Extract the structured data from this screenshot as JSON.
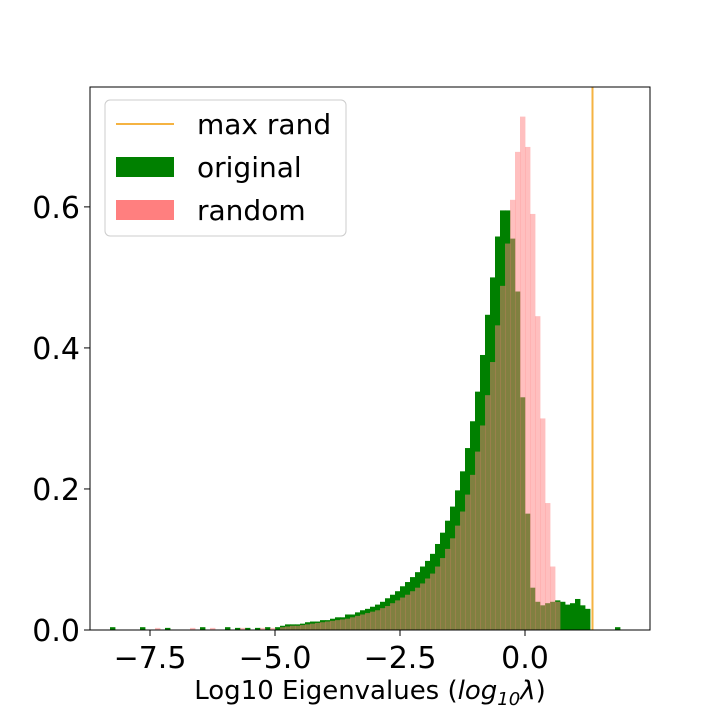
{
  "chart_data": {
    "type": "histogram",
    "xlabel": "Log10 Eigenvalues (log₁₀λ)",
    "xlabel_plain": "Log10 Eigenvalues (",
    "xlabel_math_base": "log",
    "xlabel_math_sub": "10",
    "xlabel_math_var": "λ",
    "xlabel_close": ")",
    "xlim": [
      -8.7,
      2.5
    ],
    "ylim": [
      0,
      0.77
    ],
    "xticks": [
      -7.5,
      -5.0,
      -2.5,
      0.0
    ],
    "xtick_labels": [
      "−7.5",
      "−5.0",
      "−2.5",
      "0.0"
    ],
    "yticks": [
      0.0,
      0.2,
      0.4,
      0.6
    ],
    "ytick_labels": [
      "0.0",
      "0.2",
      "0.4",
      "0.6"
    ],
    "bin_width": 0.1,
    "legend": {
      "position": "upper-left",
      "entries": [
        {
          "label": "max rand",
          "kind": "line",
          "color": "#f5b342"
        },
        {
          "label": "original",
          "kind": "patch",
          "color": "#008000"
        },
        {
          "label": "random",
          "kind": "patch",
          "color": "#ff7f7f"
        }
      ]
    },
    "vline": {
      "name": "max rand",
      "x": 1.35,
      "color": "#f5b342"
    },
    "series": [
      {
        "name": "original",
        "color": "#008000",
        "opacity": 1.0,
        "bins": [
          [
            -8.3,
            0.004
          ],
          [
            -7.7,
            0.004
          ],
          [
            -7.2,
            0.003
          ],
          [
            -6.5,
            0.004
          ],
          [
            -6.0,
            0.004
          ],
          [
            -5.8,
            0.003
          ],
          [
            -5.6,
            0.003
          ],
          [
            -5.4,
            0.003
          ],
          [
            -5.2,
            0.004
          ],
          [
            -5.0,
            0.004
          ],
          [
            -4.9,
            0.006
          ],
          [
            -4.8,
            0.008
          ],
          [
            -4.7,
            0.008
          ],
          [
            -4.6,
            0.008
          ],
          [
            -4.5,
            0.009
          ],
          [
            -4.4,
            0.011
          ],
          [
            -4.3,
            0.012
          ],
          [
            -4.2,
            0.012
          ],
          [
            -4.1,
            0.014
          ],
          [
            -4.0,
            0.014
          ],
          [
            -3.9,
            0.016
          ],
          [
            -3.8,
            0.018
          ],
          [
            -3.7,
            0.018
          ],
          [
            -3.6,
            0.022
          ],
          [
            -3.5,
            0.022
          ],
          [
            -3.4,
            0.025
          ],
          [
            -3.3,
            0.028
          ],
          [
            -3.2,
            0.03
          ],
          [
            -3.1,
            0.033
          ],
          [
            -3.0,
            0.036
          ],
          [
            -2.9,
            0.04
          ],
          [
            -2.8,
            0.045
          ],
          [
            -2.7,
            0.05
          ],
          [
            -2.6,
            0.055
          ],
          [
            -2.5,
            0.062
          ],
          [
            -2.4,
            0.068
          ],
          [
            -2.3,
            0.075
          ],
          [
            -2.2,
            0.082
          ],
          [
            -2.1,
            0.09
          ],
          [
            -2.0,
            0.098
          ],
          [
            -1.9,
            0.108
          ],
          [
            -1.8,
            0.122
          ],
          [
            -1.7,
            0.138
          ],
          [
            -1.6,
            0.155
          ],
          [
            -1.5,
            0.175
          ],
          [
            -1.4,
            0.198
          ],
          [
            -1.3,
            0.225
          ],
          [
            -1.2,
            0.258
          ],
          [
            -1.1,
            0.296
          ],
          [
            -1.0,
            0.338
          ],
          [
            -0.9,
            0.39
          ],
          [
            -0.8,
            0.447
          ],
          [
            -0.7,
            0.5
          ],
          [
            -0.6,
            0.558
          ],
          [
            -0.5,
            0.595
          ],
          [
            -0.4,
            0.595
          ],
          [
            -0.3,
            0.555
          ],
          [
            -0.2,
            0.48
          ],
          [
            -0.1,
            0.33
          ],
          [
            0.0,
            0.165
          ],
          [
            0.1,
            0.06
          ],
          [
            0.2,
            0.04
          ],
          [
            0.3,
            0.035
          ],
          [
            0.4,
            0.038
          ],
          [
            0.5,
            0.04
          ],
          [
            0.6,
            0.042
          ],
          [
            0.7,
            0.04
          ],
          [
            0.8,
            0.036
          ],
          [
            0.9,
            0.038
          ],
          [
            1.0,
            0.044
          ],
          [
            1.1,
            0.035
          ],
          [
            1.2,
            0.03
          ],
          [
            1.8,
            0.004
          ]
        ]
      },
      {
        "name": "random",
        "color": "#ff7f7f",
        "opacity": 0.5,
        "bins": [
          [
            -7.4,
            0.003
          ],
          [
            -6.7,
            0.003
          ],
          [
            -6.3,
            0.003
          ],
          [
            -5.7,
            0.003
          ],
          [
            -5.3,
            0.003
          ],
          [
            -5.1,
            0.003
          ],
          [
            -4.9,
            0.004
          ],
          [
            -4.8,
            0.005
          ],
          [
            -4.7,
            0.006
          ],
          [
            -4.6,
            0.006
          ],
          [
            -4.5,
            0.007
          ],
          [
            -4.4,
            0.008
          ],
          [
            -4.3,
            0.009
          ],
          [
            -4.2,
            0.01
          ],
          [
            -4.1,
            0.011
          ],
          [
            -4.0,
            0.012
          ],
          [
            -3.9,
            0.013
          ],
          [
            -3.8,
            0.014
          ],
          [
            -3.7,
            0.015
          ],
          [
            -3.6,
            0.016
          ],
          [
            -3.5,
            0.018
          ],
          [
            -3.4,
            0.02
          ],
          [
            -3.3,
            0.022
          ],
          [
            -3.2,
            0.024
          ],
          [
            -3.1,
            0.026
          ],
          [
            -3.0,
            0.028
          ],
          [
            -2.9,
            0.031
          ],
          [
            -2.8,
            0.034
          ],
          [
            -2.7,
            0.038
          ],
          [
            -2.6,
            0.042
          ],
          [
            -2.5,
            0.046
          ],
          [
            -2.4,
            0.05
          ],
          [
            -2.3,
            0.055
          ],
          [
            -2.2,
            0.06
          ],
          [
            -2.1,
            0.066
          ],
          [
            -2.0,
            0.073
          ],
          [
            -1.9,
            0.08
          ],
          [
            -1.8,
            0.09
          ],
          [
            -1.7,
            0.102
          ],
          [
            -1.6,
            0.115
          ],
          [
            -1.5,
            0.13
          ],
          [
            -1.4,
            0.148
          ],
          [
            -1.3,
            0.168
          ],
          [
            -1.2,
            0.192
          ],
          [
            -1.1,
            0.22
          ],
          [
            -1.0,
            0.253
          ],
          [
            -0.9,
            0.29
          ],
          [
            -0.8,
            0.333
          ],
          [
            -0.7,
            0.38
          ],
          [
            -0.6,
            0.432
          ],
          [
            -0.5,
            0.488
          ],
          [
            -0.4,
            0.548
          ],
          [
            -0.3,
            0.61
          ],
          [
            -0.2,
            0.678
          ],
          [
            -0.1,
            0.728
          ],
          [
            0.0,
            0.685
          ],
          [
            0.1,
            0.59
          ],
          [
            0.2,
            0.445
          ],
          [
            0.3,
            0.3
          ],
          [
            0.4,
            0.18
          ],
          [
            0.5,
            0.09
          ],
          [
            0.6,
            0.04
          ]
        ]
      }
    ]
  }
}
